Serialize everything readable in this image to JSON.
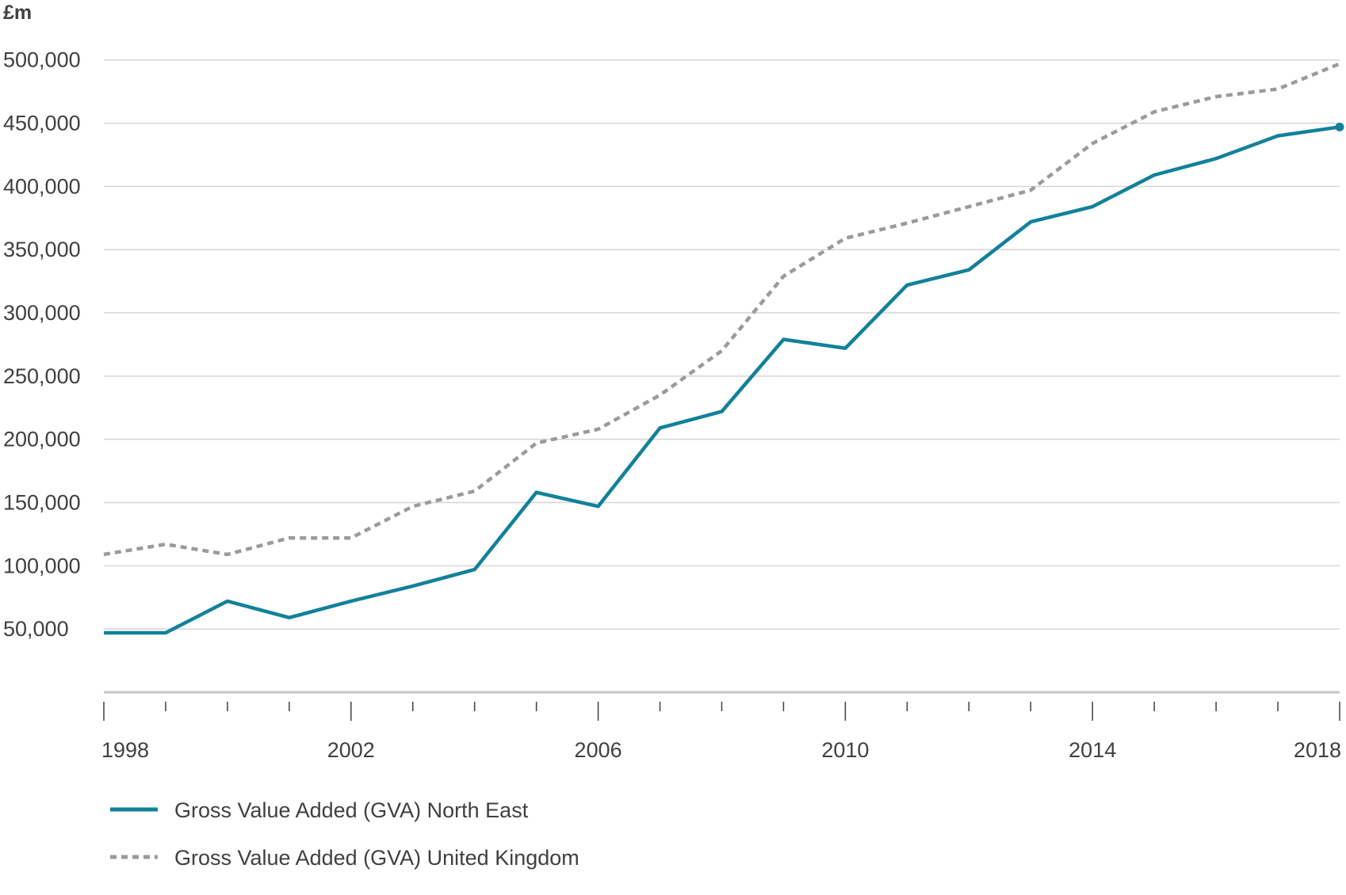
{
  "chart_data": {
    "type": "line",
    "unit_label": "£m",
    "x": [
      1998,
      1999,
      2000,
      2001,
      2002,
      2003,
      2004,
      2005,
      2006,
      2007,
      2008,
      2009,
      2010,
      2011,
      2012,
      2013,
      2014,
      2015,
      2016,
      2017,
      2018
    ],
    "x_tick_labels": [
      "1998",
      "2002",
      "2006",
      "2010",
      "2014",
      "2018"
    ],
    "y_tick_labels": [
      "50,000",
      "100,000",
      "150,000",
      "200,000",
      "250,000",
      "300,000",
      "350,000",
      "400,000",
      "450,000",
      "500,000"
    ],
    "ylim": [
      0,
      500000
    ],
    "xlim": [
      1998,
      2018
    ],
    "grid": "horizontal",
    "legend_position": "bottom-left",
    "series": [
      {
        "name": "Gross Value Added (GVA) North East",
        "color": "#12819a",
        "style": "solid",
        "end_marker": true,
        "values": [
          47000,
          47000,
          72000,
          59000,
          72000,
          84000,
          97000,
          158000,
          147000,
          209000,
          222000,
          279000,
          272000,
          322000,
          334000,
          372000,
          384000,
          409000,
          422000,
          440000,
          447000
        ]
      },
      {
        "name": "Gross Value Added (GVA) United Kingdom",
        "color": "#9b9b9b",
        "style": "dotted",
        "end_marker": false,
        "values": [
          109000,
          117000,
          109000,
          122000,
          122000,
          147000,
          159000,
          197000,
          208000,
          235000,
          270000,
          329000,
          359000,
          371000,
          384000,
          397000,
          434000,
          459000,
          471000,
          477000,
          497000
        ]
      }
    ]
  }
}
